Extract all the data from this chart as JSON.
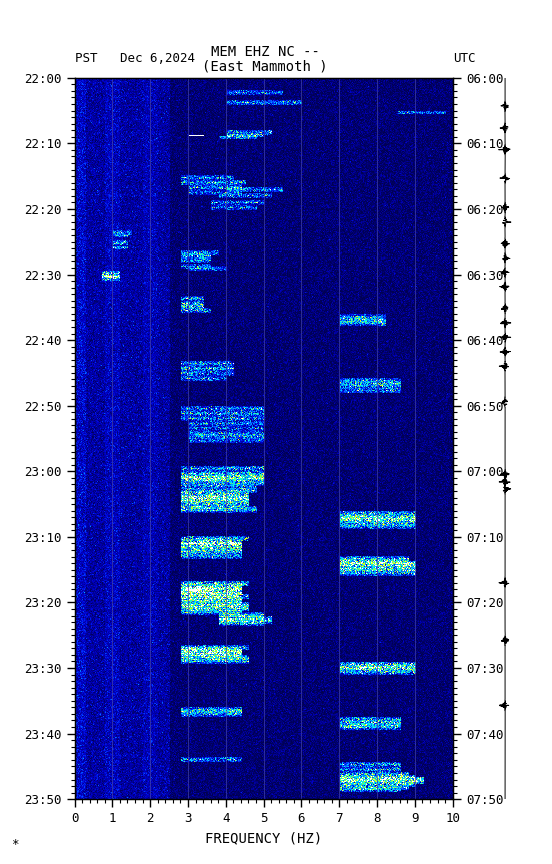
{
  "title_line1": "MEM EHZ NC --",
  "title_line2": "(East Mammoth )",
  "left_label": "PST   Dec 6,2024",
  "right_label": "UTC",
  "xlabel": "FREQUENCY (HZ)",
  "freq_min": 0,
  "freq_max": 10,
  "freq_ticks": [
    0,
    1,
    2,
    3,
    4,
    5,
    6,
    7,
    8,
    9,
    10
  ],
  "time_labels_pst": [
    "22:00",
    "22:10",
    "22:20",
    "22:30",
    "22:40",
    "22:50",
    "23:00",
    "23:10",
    "23:20",
    "23:30",
    "23:40",
    "23:50"
  ],
  "time_labels_utc": [
    "06:00",
    "06:10",
    "06:20",
    "06:30",
    "06:40",
    "06:50",
    "07:00",
    "07:10",
    "07:20",
    "07:30",
    "07:40",
    "07:50"
  ],
  "n_time": 720,
  "n_freq": 500,
  "background_color": "#ffffff",
  "vert_lines_freq": [
    1,
    2,
    3,
    4,
    5,
    6,
    7,
    8,
    9
  ],
  "label_color": "#000000",
  "font_family": "monospace",
  "seismogram_events": [
    0.13,
    0.22,
    0.3,
    0.43,
    0.44,
    0.45,
    0.55,
    0.6,
    0.62,
    0.64,
    0.66,
    0.68,
    0.71,
    0.73,
    0.75,
    0.77,
    0.8,
    0.82,
    0.86,
    0.9,
    0.93,
    0.96
  ]
}
